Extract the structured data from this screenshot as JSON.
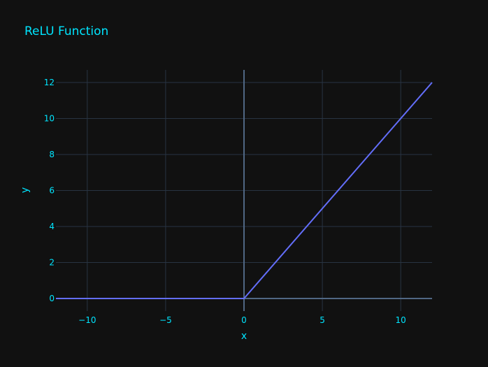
{
  "chart_data": {
    "type": "line",
    "title": "ReLU Function",
    "xlabel": "x",
    "ylabel": "y",
    "xlim": [
      -12,
      12
    ],
    "ylim": [
      -0.7,
      12.7
    ],
    "xticks": [
      -10,
      -5,
      0,
      5,
      10
    ],
    "xtick_labels": [
      "−10",
      "−5",
      "0",
      "5",
      "10"
    ],
    "yticks": [
      0,
      2,
      4,
      6,
      8,
      10,
      12
    ],
    "ytick_labels": [
      "0",
      "2",
      "4",
      "6",
      "8",
      "10",
      "12"
    ],
    "grid": true,
    "legend": "none",
    "series": [
      {
        "x": [
          -12,
          0,
          12
        ],
        "y": [
          0,
          0,
          12
        ]
      }
    ],
    "colors": {
      "background": "#111111",
      "grid": "#283442",
      "zeroline": "#506784",
      "text": "#00e5ff",
      "line": "#636efa"
    }
  }
}
